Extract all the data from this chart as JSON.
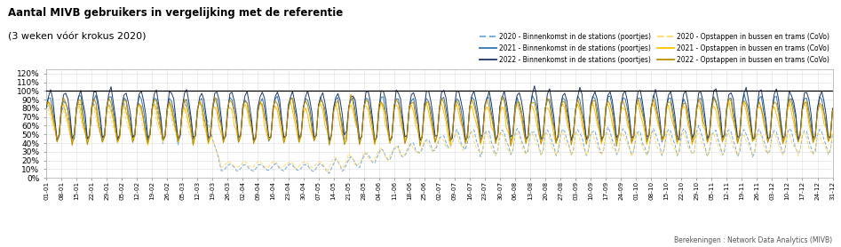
{
  "title_line1": "Aantal MIVB gebruikers in vergelijking met de referentie",
  "title_line2": "(3 weken vóór krokus 2020)",
  "footnote": "Berekeningen : Network Data Analytics (MIVB)",
  "color_blue_2020": "#70A8D8",
  "color_blue_2021": "#2E75B6",
  "color_blue_2022": "#203864",
  "color_gold_2020": "#FFD966",
  "color_gold_2021": "#FFC000",
  "color_gold_2022": "#BF8F00",
  "legend_entries": [
    {
      "label": "2020 - Binnenkomst in de stations (poortjes)",
      "color": "#70A8D8",
      "linestyle": "dashed"
    },
    {
      "label": "2021 - Binnenkomst in de stations (poortjes)",
      "color": "#2E75B6",
      "linestyle": "solid"
    },
    {
      "label": "2022 - Binnenkomst in de stations (poortjes)",
      "color": "#203864",
      "linestyle": "solid"
    },
    {
      "label": "2020 - Opstappen in bussen en trams (CoVo)",
      "color": "#FFD966",
      "linestyle": "dashed"
    },
    {
      "label": "2021 - Opstappen in bussen en trams (CoVo)",
      "color": "#FFC000",
      "linestyle": "solid"
    },
    {
      "label": "2022 - Opstappen in bussen en trams (CoVo)",
      "color": "#BF8F00",
      "linestyle": "solid"
    }
  ],
  "x_tick_labels": [
    "01-01",
    "08-01",
    "15-01",
    "22-01",
    "29-01",
    "05-02",
    "12-02",
    "19-02",
    "26-02",
    "05-03",
    "12-03",
    "19-03",
    "26-03",
    "02-04",
    "09-04",
    "16-04",
    "23-04",
    "30-04",
    "07-05",
    "14-05",
    "21-05",
    "28-05",
    "04-06",
    "11-06",
    "18-06",
    "25-06",
    "02-07",
    "09-07",
    "16-07",
    "23-07",
    "30-07",
    "06-08",
    "13-08",
    "20-08",
    "27-08",
    "03-09",
    "10-09",
    "17-09",
    "24-09",
    "01-10",
    "08-10",
    "15-10",
    "22-10",
    "29-10",
    "05-11",
    "12-11",
    "19-11",
    "26-11",
    "03-12",
    "10-12",
    "17-12",
    "24-12",
    "31-12"
  ]
}
